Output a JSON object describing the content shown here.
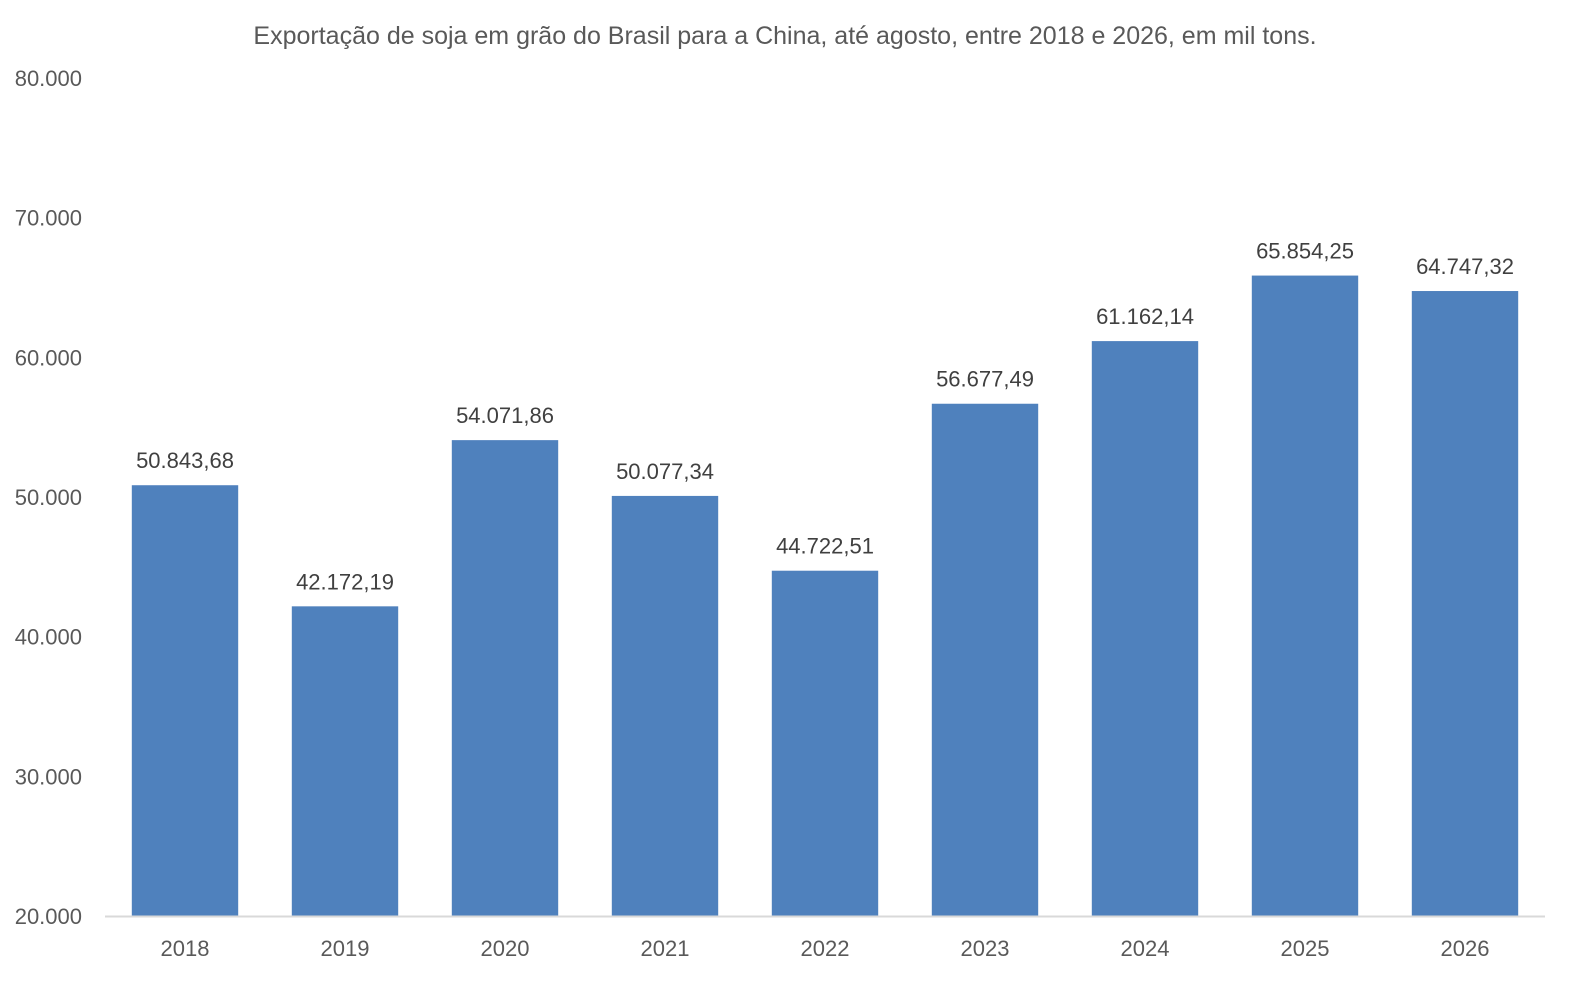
{
  "chart_data": {
    "type": "bar",
    "title": "Exportação de soja em grão do Brasil para a China, até agosto, entre 2018 e 2026, em mil tons.",
    "xlabel": "",
    "ylabel": "",
    "categories": [
      "2018",
      "2019",
      "2020",
      "2021",
      "2022",
      "2023",
      "2024",
      "2025",
      "2026"
    ],
    "values": [
      50843.68,
      42172.19,
      54071.86,
      50077.34,
      44722.51,
      56677.49,
      61162.14,
      65854.25,
      64747.32
    ],
    "data_labels": [
      "50.843,68",
      "42.172,19",
      "54.071,86",
      "50.077,34",
      "44.722,51",
      "56.677,49",
      "61.162,14",
      "65.854,25",
      "64.747,32"
    ],
    "ylim": [
      20000,
      80000
    ],
    "y_ticks": [
      20000,
      30000,
      40000,
      50000,
      60000,
      70000,
      80000
    ],
    "y_tick_labels": [
      "20.000",
      "30.000",
      "40.000",
      "50.000",
      "60.000",
      "70.000",
      "80.000"
    ],
    "grid": false,
    "legend": "none",
    "colors": {
      "bar": "#4F81BD",
      "axis_line": "#D9D9D9",
      "text": "#595959",
      "data_label_text": "#404040"
    }
  }
}
